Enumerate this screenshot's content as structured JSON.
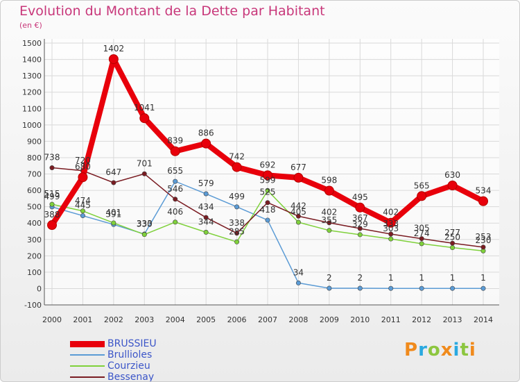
{
  "header": {
    "title": "Evolution du Montant de la Dette par Habitant",
    "unit": "(en €)"
  },
  "logo": {
    "text": "Proxiti",
    "colors": [
      "#f08a1c",
      "#2aa9e0",
      "#8cc63f",
      "#f08a1c",
      "#2aa9e0",
      "#8cc63f",
      "#f08a1c"
    ]
  },
  "chart_data": {
    "type": "line",
    "title": "Evolution du Montant de la Dette par Habitant",
    "ylabel": "(en €)",
    "xlabel": "",
    "ylim": [
      -100,
      1500
    ],
    "ytick_step": 100,
    "grid": true,
    "legend_position": "bottom-left",
    "x": [
      "2000",
      "2001",
      "2002",
      "2003",
      "2004",
      "2005",
      "2006",
      "2007",
      "2008",
      "2009",
      "2010",
      "2011",
      "2012",
      "2013",
      "2014"
    ],
    "series": [
      {
        "name": "BRUSSIEU",
        "color": "#e8000b",
        "values": [
          388,
          680,
          1402,
          1041,
          839,
          886,
          742,
          692,
          677,
          598,
          495,
          402,
          565,
          630,
          534
        ]
      },
      {
        "name": "Brullioles",
        "color": "#5b9bd5",
        "values": [
          499,
          445,
          391,
          333,
          655,
          579,
          499,
          418,
          34,
          2,
          2,
          1,
          1,
          1,
          1
        ]
      },
      {
        "name": "Courzieu",
        "color": "#7fd13b",
        "values": [
          515,
          474,
          401,
          330,
          406,
          344,
          285,
          599,
          405,
          355,
          329,
          303,
          274,
          250,
          230
        ]
      },
      {
        "name": "Bessenay",
        "color": "#7a1c22",
        "values": [
          738,
          720,
          647,
          701,
          546,
          434,
          338,
          525,
          442,
          402,
          367,
          333,
          305,
          277,
          253
        ]
      }
    ]
  }
}
